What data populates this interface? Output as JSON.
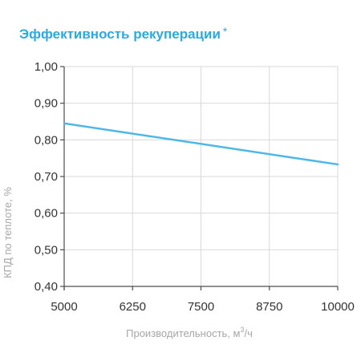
{
  "title": "Эффективность рекуперации",
  "title_mark": "*",
  "chart_data": {
    "type": "line",
    "title": "Эффективность рекуперации",
    "xlabel_main": "Производительность, м",
    "xlabel_sup": "3",
    "xlabel_tail": "/ч",
    "ylabel": "КПД по теплоте, %",
    "xlim": [
      5000,
      10000
    ],
    "ylim": [
      0.4,
      1.0
    ],
    "x_ticks": [
      5000,
      6250,
      7500,
      8750,
      10000
    ],
    "x_tick_labels": [
      "5000",
      "6250",
      "7500",
      "8750",
      "10000"
    ],
    "y_ticks": [
      0.4,
      0.5,
      0.6,
      0.7,
      0.8,
      0.9,
      1.0
    ],
    "y_tick_labels": [
      "0,40",
      "0,50",
      "0,60",
      "0,70",
      "0,80",
      "0,90",
      "1,00"
    ],
    "grid": true,
    "series": [
      {
        "x": [
          5000,
          10000
        ],
        "y": [
          0.845,
          0.733
        ]
      }
    ],
    "line_color": "#4db8e8",
    "grid_color": "#d9d9d9",
    "axis_color": "#4d4d4d"
  }
}
